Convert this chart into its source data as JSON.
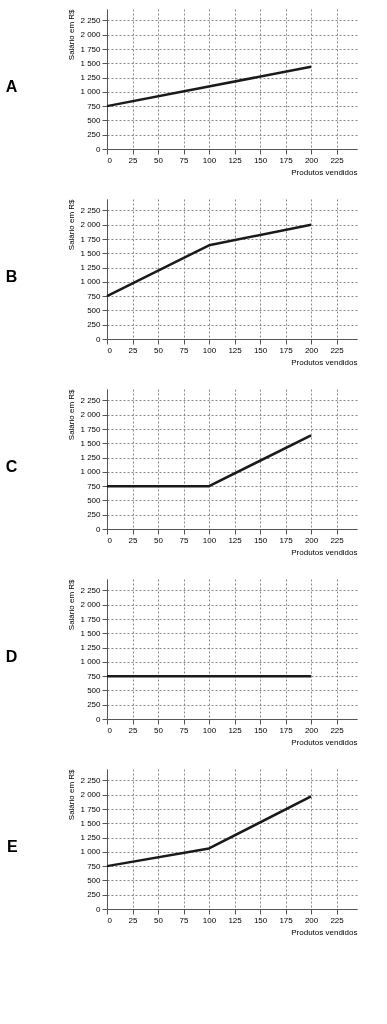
{
  "chart_data": [
    {
      "type": "line",
      "title": "A",
      "xlabel": "Produtos vendidos",
      "ylabel": "Salário em R$",
      "x": [
        0,
        200
      ],
      "values": [
        750,
        1440
      ],
      "color": "#1a1a1a",
      "line_style": "solid",
      "xlim": [
        0,
        245
      ],
      "ylim": [
        0,
        2450
      ],
      "xticks": [
        0,
        25,
        50,
        75,
        100,
        125,
        150,
        175,
        200,
        225
      ],
      "yticks": [
        0,
        250,
        500,
        750,
        {
          "value": 1000,
          "label": "1 000"
        },
        {
          "value": 1250,
          "label": "1 250"
        },
        {
          "value": 1500,
          "label": "1 500"
        },
        {
          "value": 1750,
          "label": "1 750"
        },
        {
          "value": 2000,
          "label": "2 000"
        },
        {
          "value": 2250,
          "label": "2 250"
        }
      ],
      "grid": true
    },
    {
      "type": "line",
      "title": "B",
      "xlabel": "Produtos vendidos",
      "ylabel": "Salário em R$",
      "x": [
        0,
        100,
        200
      ],
      "values": [
        750,
        1640,
        2000
      ],
      "color": "#1a1a1a",
      "line_style": "solid",
      "xlim": [
        0,
        245
      ],
      "ylim": [
        0,
        2450
      ],
      "xticks": [
        0,
        25,
        50,
        75,
        100,
        125,
        150,
        175,
        200,
        225
      ],
      "yticks": [
        0,
        250,
        500,
        750,
        {
          "value": 1000,
          "label": "1 000"
        },
        {
          "value": 1250,
          "label": "1 250"
        },
        {
          "value": 1500,
          "label": "1 500"
        },
        {
          "value": 1750,
          "label": "1 750"
        },
        {
          "value": 2000,
          "label": "2 000"
        },
        {
          "value": 2250,
          "label": "2 250"
        }
      ],
      "grid": true
    },
    {
      "type": "line",
      "title": "C",
      "xlabel": "Produtos vendidos",
      "ylabel": "Salário em R$",
      "x": [
        0,
        100,
        200
      ],
      "values": [
        750,
        750,
        1640
      ],
      "color": "#1a1a1a",
      "line_style": "solid",
      "xlim": [
        0,
        245
      ],
      "ylim": [
        0,
        2450
      ],
      "xticks": [
        0,
        25,
        50,
        75,
        100,
        125,
        150,
        175,
        200,
        225
      ],
      "yticks": [
        0,
        250,
        500,
        750,
        {
          "value": 1000,
          "label": "1 000"
        },
        {
          "value": 1250,
          "label": "1 250"
        },
        {
          "value": 1500,
          "label": "1 500"
        },
        {
          "value": 1750,
          "label": "1 750"
        },
        {
          "value": 2000,
          "label": "2 000"
        },
        {
          "value": 2250,
          "label": "2 250"
        }
      ],
      "grid": true
    },
    {
      "type": "line",
      "title": "D",
      "xlabel": "Produtos vendidos",
      "ylabel": "Salário em R$",
      "x": [
        0,
        200
      ],
      "values": [
        750,
        750
      ],
      "color": "#1a1a1a",
      "line_style": "solid",
      "xlim": [
        0,
        245
      ],
      "ylim": [
        0,
        2450
      ],
      "xticks": [
        0,
        25,
        50,
        75,
        100,
        125,
        150,
        175,
        200,
        225
      ],
      "yticks": [
        0,
        250,
        500,
        750,
        {
          "value": 1000,
          "label": "1 000"
        },
        {
          "value": 1250,
          "label": "1 250"
        },
        {
          "value": 1500,
          "label": "1 500"
        },
        {
          "value": 1750,
          "label": "1 750"
        },
        {
          "value": 2000,
          "label": "2 000"
        },
        {
          "value": 2250,
          "label": "2 250"
        }
      ],
      "grid": true
    },
    {
      "type": "line",
      "title": "E",
      "xlabel": "Produtos vendidos",
      "ylabel": "Salário em R$",
      "x": [
        0,
        100,
        200
      ],
      "values": [
        750,
        1060,
        1970
      ],
      "color": "#1a1a1a",
      "line_style": "solid",
      "xlim": [
        0,
        245
      ],
      "ylim": [
        0,
        2450
      ],
      "xticks": [
        0,
        25,
        50,
        75,
        100,
        125,
        150,
        175,
        200,
        225
      ],
      "yticks": [
        0,
        250,
        500,
        750,
        {
          "value": 1000,
          "label": "1 000"
        },
        {
          "value": 1250,
          "label": "1 250"
        },
        {
          "value": 1500,
          "label": "1 500"
        },
        {
          "value": 1750,
          "label": "1 750"
        },
        {
          "value": 2000,
          "label": "2 000"
        },
        {
          "value": 2250,
          "label": "2 250"
        }
      ],
      "grid": true
    }
  ]
}
